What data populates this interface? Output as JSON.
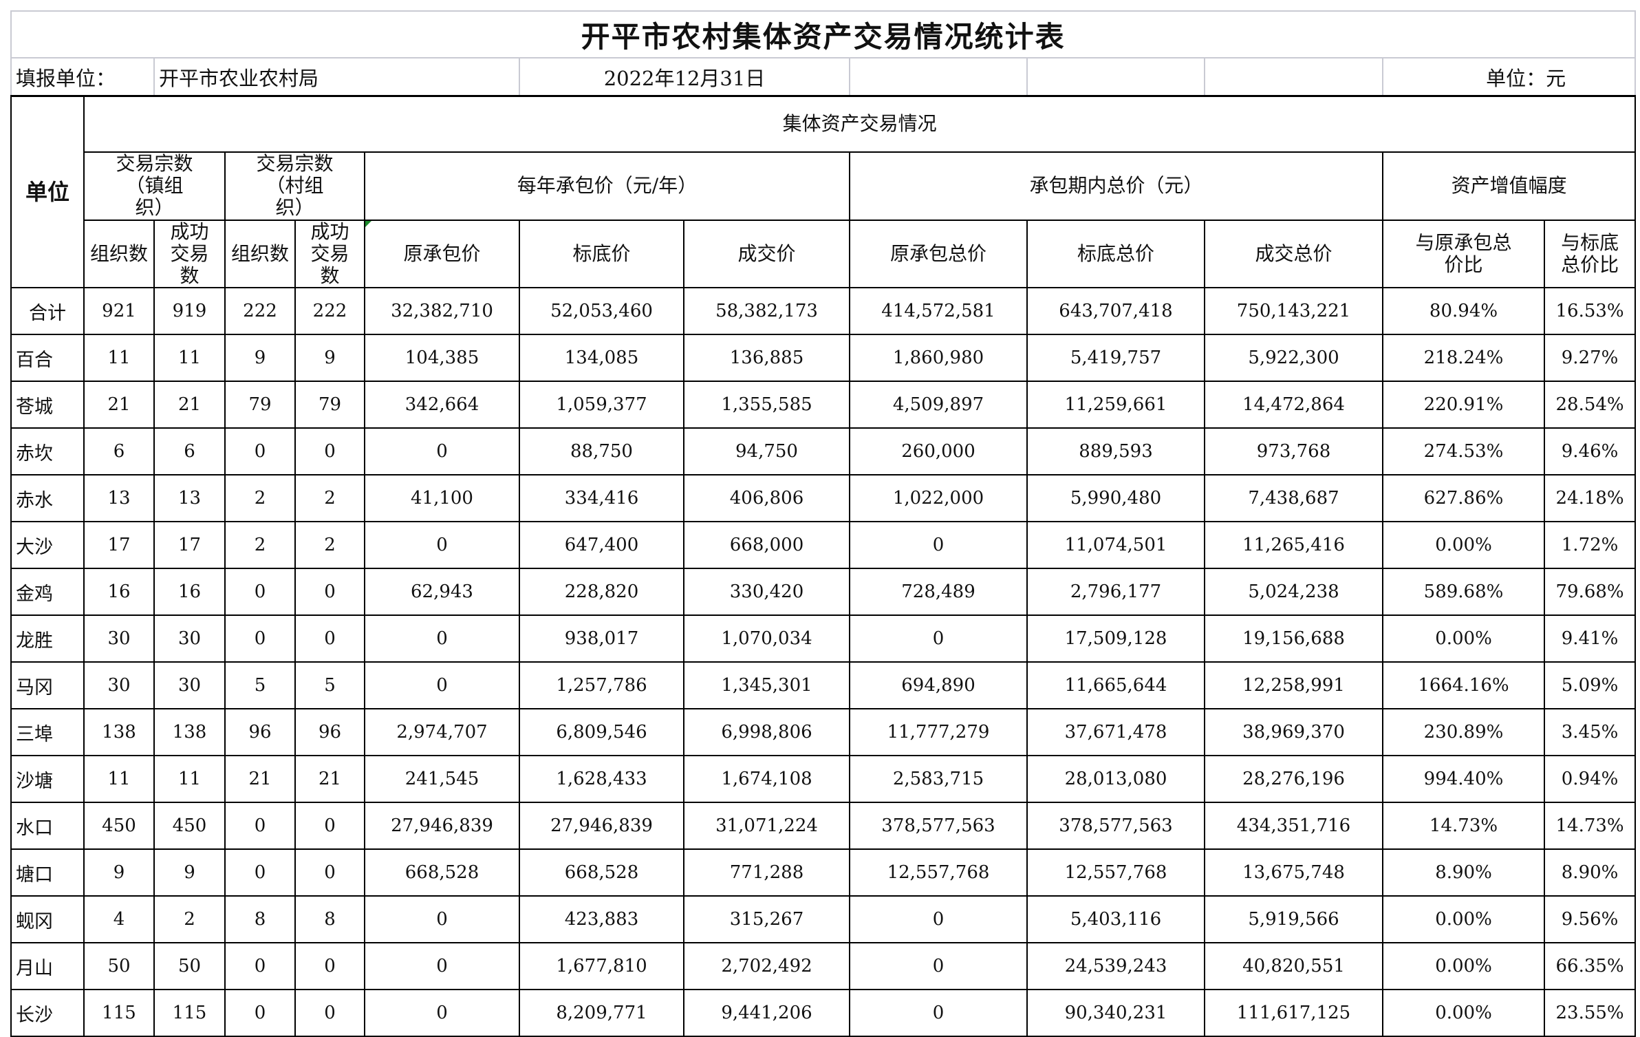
{
  "title": "开平市农村集体资产交易情况统计表",
  "info": {
    "reporter_label": "填报单位：",
    "reporter": "开平市农业农村局",
    "date": "2022年12月31日",
    "unit": "单位：元"
  },
  "header": {
    "unit_col": "单位",
    "group": "集体资产交易情况",
    "town_count": "交易宗数（镇组织）",
    "village_count": "交易宗数（村组织）",
    "annual_price": "每年承包价（元/年）",
    "total_price": "承包期内总价（元）",
    "increase": "资产增值幅度",
    "sub": [
      "组织数",
      "成功交易数",
      "组织数",
      "成功交易数",
      "原承包价",
      "标底价",
      "成交价",
      "原承包总价",
      "标底总价",
      "成交总价",
      "与原承包总价比",
      "与标底总价比"
    ]
  },
  "rows": [
    [
      "合计",
      "921",
      "919",
      "222",
      "222",
      "32,382,710",
      "52,053,460",
      "58,382,173",
      "414,572,581",
      "643,707,418",
      "750,143,221",
      "80.94%",
      "16.53%"
    ],
    [
      "百合",
      "11",
      "11",
      "9",
      "9",
      "104,385",
      "134,085",
      "136,885",
      "1,860,980",
      "5,419,757",
      "5,922,300",
      "218.24%",
      "9.27%"
    ],
    [
      "苍城",
      "21",
      "21",
      "79",
      "79",
      "342,664",
      "1,059,377",
      "1,355,585",
      "4,509,897",
      "11,259,661",
      "14,472,864",
      "220.91%",
      "28.54%"
    ],
    [
      "赤坎",
      "6",
      "6",
      "0",
      "0",
      "0",
      "88,750",
      "94,750",
      "260,000",
      "889,593",
      "973,768",
      "274.53%",
      "9.46%"
    ],
    [
      "赤水",
      "13",
      "13",
      "2",
      "2",
      "41,100",
      "334,416",
      "406,806",
      "1,022,000",
      "5,990,480",
      "7,438,687",
      "627.86%",
      "24.18%"
    ],
    [
      "大沙",
      "17",
      "17",
      "2",
      "2",
      "0",
      "647,400",
      "668,000",
      "0",
      "11,074,501",
      "11,265,416",
      "0.00%",
      "1.72%"
    ],
    [
      "金鸡",
      "16",
      "16",
      "0",
      "0",
      "62,943",
      "228,820",
      "330,420",
      "728,489",
      "2,796,177",
      "5,024,238",
      "589.68%",
      "79.68%"
    ],
    [
      "龙胜",
      "30",
      "30",
      "0",
      "0",
      "0",
      "938,017",
      "1,070,034",
      "0",
      "17,509,128",
      "19,156,688",
      "0.00%",
      "9.41%"
    ],
    [
      "马冈",
      "30",
      "30",
      "5",
      "5",
      "0",
      "1,257,786",
      "1,345,301",
      "694,890",
      "11,665,644",
      "12,258,991",
      "1664.16%",
      "5.09%"
    ],
    [
      "三埠",
      "138",
      "138",
      "96",
      "96",
      "2,974,707",
      "6,809,546",
      "6,998,806",
      "11,777,279",
      "37,671,478",
      "38,969,370",
      "230.89%",
      "3.45%"
    ],
    [
      "沙塘",
      "11",
      "11",
      "21",
      "21",
      "241,545",
      "1,628,433",
      "1,674,108",
      "2,583,715",
      "28,013,080",
      "28,276,196",
      "994.40%",
      "0.94%"
    ],
    [
      "水口",
      "450",
      "450",
      "0",
      "0",
      "27,946,839",
      "27,946,839",
      "31,071,224",
      "378,577,563",
      "378,577,563",
      "434,351,716",
      "14.73%",
      "14.73%"
    ],
    [
      "塘口",
      "9",
      "9",
      "0",
      "0",
      "668,528",
      "668,528",
      "771,288",
      "12,557,768",
      "12,557,768",
      "13,675,748",
      "8.90%",
      "8.90%"
    ],
    [
      "蚬冈",
      "4",
      "2",
      "8",
      "8",
      "0",
      "423,883",
      "315,267",
      "0",
      "5,403,116",
      "5,919,566",
      "0.00%",
      "9.56%"
    ],
    [
      "月山",
      "50",
      "50",
      "0",
      "0",
      "0",
      "1,677,810",
      "2,702,492",
      "0",
      "24,539,243",
      "40,820,551",
      "0.00%",
      "66.35%"
    ],
    [
      "长沙",
      "115",
      "115",
      "0",
      "0",
      "0",
      "8,209,771",
      "9,441,206",
      "0",
      "90,340,231",
      "111,617,125",
      "0.00%",
      "23.55%"
    ]
  ]
}
